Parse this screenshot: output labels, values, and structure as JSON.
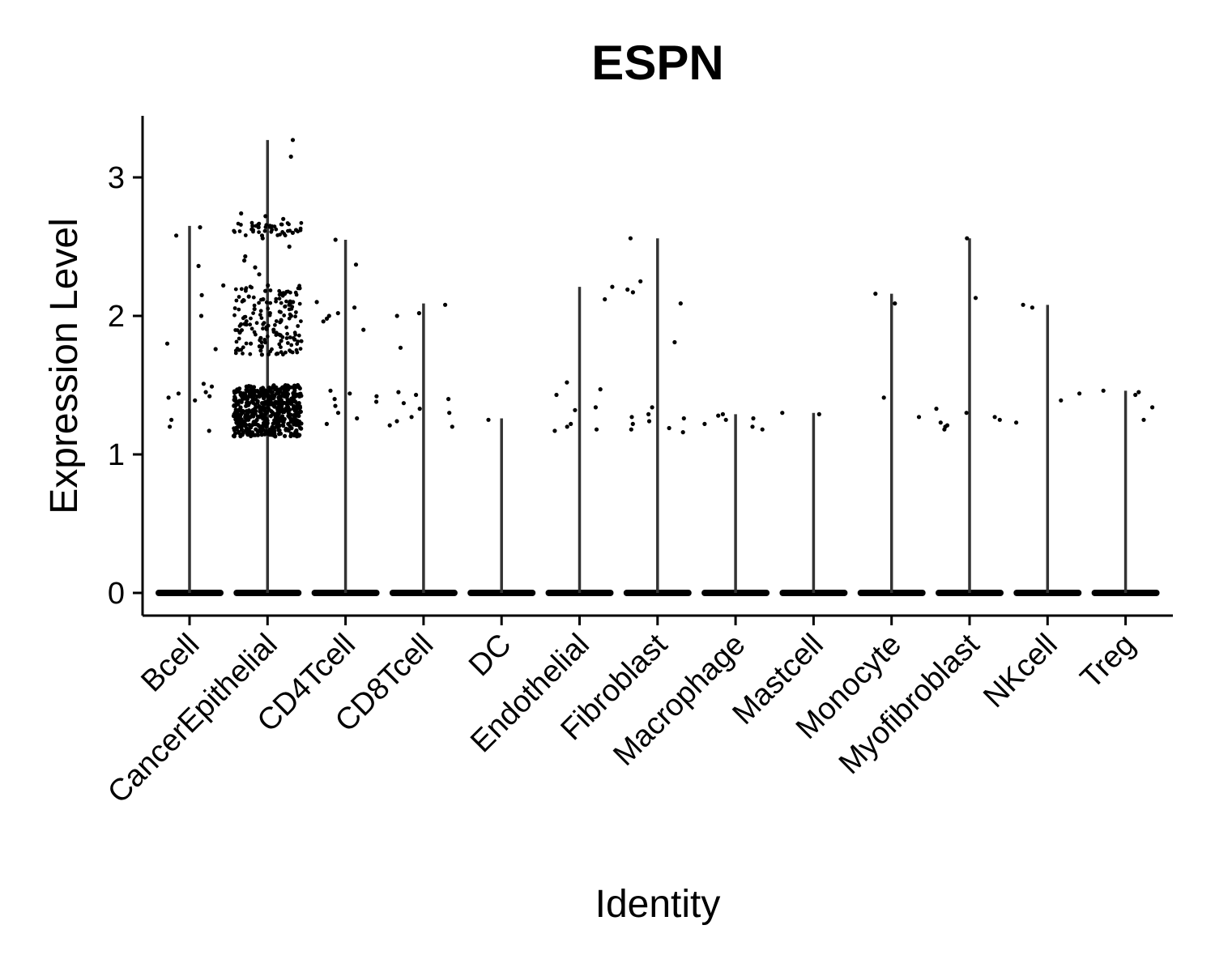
{
  "chart_data": {
    "type": "violin",
    "title": "ESPN",
    "xlabel": "Identity",
    "ylabel": "Expression Level",
    "ylim": [
      -0.16,
      3.45
    ],
    "yticks": [
      0,
      1,
      2,
      3
    ],
    "grid": false,
    "legend": "none",
    "colors": {
      "line": "#333333",
      "point": "#000000"
    },
    "categories": [
      "Bcell",
      "CancerEpithelial",
      "CD4Tcell",
      "CD8Tcell",
      "DC",
      "Endothelial",
      "Fibroblast",
      "Macrophage",
      "Mastcell",
      "Monocyte",
      "Myofibroblast",
      "NKcell",
      "Treg"
    ],
    "max_values": [
      2.65,
      3.27,
      2.55,
      2.09,
      1.26,
      2.21,
      2.56,
      1.29,
      1.3,
      2.16,
      2.56,
      2.08,
      1.46
    ],
    "points": [
      [
        2.64,
        2.58,
        2.36,
        2.22,
        2.15,
        2.0,
        1.8,
        1.76,
        1.51,
        1.49,
        1.45,
        1.44,
        1.42,
        1.41,
        1.39,
        1.25,
        1.2,
        1.17
      ],
      [
        3.27,
        3.15,
        2.74,
        2.72,
        2.7,
        2.66,
        2.65,
        2.64,
        2.62,
        2.6,
        2.58,
        2.56,
        2.5,
        2.43,
        2.4,
        2.35,
        2.3,
        2.22,
        2.2,
        2.18,
        2.16,
        2.14,
        2.12,
        2.1,
        2.08,
        2.05,
        2.02,
        2.0,
        1.97,
        1.94,
        1.9,
        1.88,
        1.86,
        1.84,
        1.82,
        1.8,
        1.78,
        1.75,
        1.72,
        1.5,
        1.48,
        1.45,
        1.42,
        1.4,
        1.38,
        1.35,
        1.32,
        1.3,
        1.28,
        1.25,
        1.22,
        1.2,
        1.18,
        1.15,
        1.13
      ],
      [
        2.55,
        2.37,
        2.1,
        2.06,
        2.02,
        2.0,
        1.98,
        1.96,
        1.9,
        1.46,
        1.44,
        1.42,
        1.4,
        1.38,
        1.35,
        1.3,
        1.26,
        1.22
      ],
      [
        2.08,
        2.02,
        2.0,
        1.77,
        1.45,
        1.43,
        1.4,
        1.37,
        1.33,
        1.3,
        1.27,
        1.24,
        1.21,
        1.2
      ],
      [
        1.25
      ],
      [
        2.21,
        2.12,
        1.52,
        1.47,
        1.43,
        1.34,
        1.32,
        1.22,
        1.2,
        1.18,
        1.17
      ],
      [
        2.56,
        2.25,
        2.19,
        2.17,
        2.09,
        1.81,
        1.34,
        1.29,
        1.27,
        1.26,
        1.24,
        1.22,
        1.19,
        1.18,
        1.16
      ],
      [
        1.29,
        1.28,
        1.26,
        1.25,
        1.22,
        1.2,
        1.18
      ],
      [
        1.3,
        1.29
      ],
      [
        2.16,
        2.09,
        1.41,
        1.27
      ],
      [
        2.56,
        2.13,
        1.33,
        1.3,
        1.27,
        1.25,
        1.23,
        1.21,
        1.2,
        1.18
      ],
      [
        2.08,
        2.06,
        1.44,
        1.39,
        1.23
      ],
      [
        1.46,
        1.45,
        1.43,
        1.34,
        1.25
      ]
    ]
  }
}
